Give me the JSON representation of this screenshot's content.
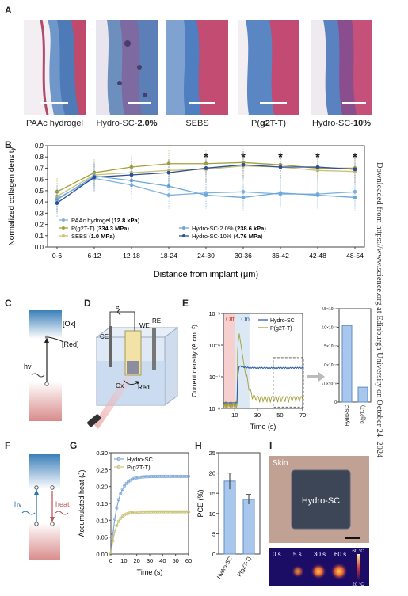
{
  "panels": {
    "A": "A",
    "B": "B",
    "C": "C",
    "D": "D",
    "E": "E",
    "F": "F",
    "G": "G",
    "H": "H",
    "I": "I"
  },
  "panel_a": {
    "captions": [
      {
        "main": "PAAc hydrogel",
        "bold": ""
      },
      {
        "main": "Hydro-SC-",
        "bold": "2.0%"
      },
      {
        "main": "SEBS",
        "bold": ""
      },
      {
        "main": "P(",
        "bold": "g2T-T",
        "tail": ")"
      },
      {
        "main": "Hydro-SC-",
        "bold": "10%"
      }
    ]
  },
  "sidebar": {
    "text": "Downloaded from https://www.science.org at Edinburgh University on October 24, 2024"
  },
  "panel_c": {
    "ox": "[Ox]",
    "red": "[Red]",
    "hv": "hv"
  },
  "panel_d": {
    "ce": "CE",
    "we": "WE",
    "re": "RE",
    "e": "e⁻",
    "ox": "Ox",
    "red": "Red"
  },
  "panel_f": {
    "hv": "hv",
    "heat": "heat"
  },
  "panel_i": {
    "skin": "Skin",
    "sample": "Hydro-SC",
    "times": [
      "0 s",
      "5 s",
      "30 s",
      "60 s"
    ],
    "cb_max": "60 °C",
    "cb_min": "20 °C"
  },
  "colors": {
    "light_blue": "#7fb1e0",
    "dark_blue": "#2f4e9a",
    "olive": "#a3a03a",
    "khaki": "#c9c27a",
    "pink": "#f4c9c9"
  },
  "chart_data": [
    {
      "id": "B",
      "type": "line",
      "ylabel": "Normalized collagen density",
      "xlabel": "Distance from implant (μm)",
      "categories": [
        "0-6",
        "6-12",
        "12-18",
        "18-24",
        "24-30",
        "30-36",
        "36-42",
        "42-48",
        "48-54"
      ],
      "ylim": [
        0.0,
        0.9
      ],
      "yticks": [
        "0.0",
        "0.1",
        "0.2",
        "0.3",
        "0.4",
        "0.5",
        "0.6",
        "0.7",
        "0.8",
        "0.9"
      ],
      "significance": [
        "",
        "",
        "",
        "",
        "*",
        "*",
        "*",
        "*",
        "*"
      ],
      "series": [
        {
          "name": "PAAc hydrogel",
          "modulus": "12.8 kPa",
          "color": "#7fb1e0",
          "values": [
            0.43,
            0.61,
            0.55,
            0.46,
            0.48,
            0.49,
            0.47,
            0.47,
            0.49
          ]
        },
        {
          "name": "P(g2T-T)",
          "modulus": "334.3 MPa",
          "color": "#a3a03a",
          "values": [
            0.49,
            0.66,
            0.71,
            0.74,
            0.74,
            0.75,
            0.73,
            0.7,
            0.7
          ]
        },
        {
          "name": "SEBS",
          "modulus": "1.0 MPa",
          "color": "#c9c27a",
          "values": [
            0.45,
            0.64,
            0.66,
            0.68,
            0.69,
            0.72,
            0.71,
            0.68,
            0.67
          ]
        },
        {
          "name": "Hydro-SC-2.0%",
          "modulus": "238.6 kPa",
          "color": "#6ea8d8",
          "values": [
            0.42,
            0.63,
            0.59,
            0.54,
            0.46,
            0.44,
            0.48,
            0.46,
            0.44
          ]
        },
        {
          "name": "Hydro-SC-10%",
          "modulus": "4.76 MPa",
          "color": "#2f4e9a",
          "values": [
            0.39,
            0.62,
            0.64,
            0.66,
            0.7,
            0.73,
            0.71,
            0.71,
            0.69
          ]
        }
      ]
    },
    {
      "id": "E-trace",
      "type": "line",
      "ylabel": "Current density (A cm⁻²)",
      "xlabel": "Time (s)",
      "xlim": [
        0,
        70
      ],
      "xticks": [
        10,
        30,
        50,
        70
      ],
      "yscale": "log",
      "ylim": [
        1e-08,
        1e-05
      ],
      "yticks": [
        "10⁻⁸",
        "10⁻⁷",
        "10⁻⁶",
        "10⁻⁵"
      ],
      "off_label": "Off",
      "on_label": "On",
      "series": [
        {
          "name": "Hydro-SC",
          "color": "#2f5ea8"
        },
        {
          "name": "P(g2T-T)",
          "color": "#a3a03a"
        }
      ]
    },
    {
      "id": "E-bar",
      "type": "bar",
      "categories": [
        "Hydro-SC",
        "P(g2T-T)"
      ],
      "values": [
        2.05e-07,
        4e-08
      ],
      "ylim": [
        0,
        2.5e-07
      ],
      "yticks": [
        "0",
        "5.0×10⁻⁸",
        "1.0×10⁻⁷",
        "1.5×10⁻⁷",
        "2.0×10⁻⁷",
        "2.5×10⁻⁷"
      ]
    },
    {
      "id": "G",
      "type": "line",
      "ylabel": "Accumulated heat (J)",
      "xlabel": "Time (s)",
      "xlim": [
        0,
        60
      ],
      "ylim": [
        0,
        0.3
      ],
      "xticks": [
        "0",
        "10",
        "20",
        "30",
        "40",
        "50",
        "60"
      ],
      "yticks": [
        "0.00",
        "0.05",
        "0.10",
        "0.15",
        "0.20",
        "0.25",
        "0.30"
      ],
      "series": [
        {
          "name": "Hydro-SC",
          "color": "#7fa8dc",
          "plateau": 0.23,
          "tau": 5
        },
        {
          "name": "P(g2T-T)",
          "color": "#c9c27a",
          "plateau": 0.125,
          "tau": 4
        }
      ]
    },
    {
      "id": "H",
      "type": "bar",
      "ylabel": "PCE (%)",
      "categories": [
        "Hydro-SC",
        "P(g2T-T)"
      ],
      "values": [
        18,
        13.5
      ],
      "errors": [
        2,
        1.2
      ],
      "ylim": [
        0,
        25
      ],
      "yticks": [
        "0",
        "5",
        "10",
        "15",
        "20",
        "25"
      ]
    }
  ]
}
